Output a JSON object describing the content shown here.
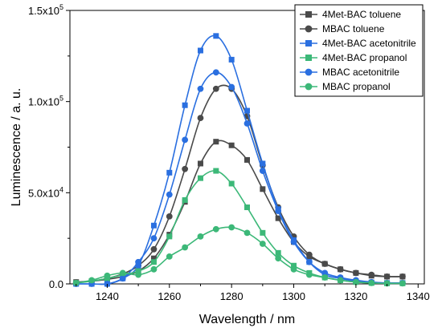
{
  "chart_data": {
    "type": "line",
    "xlabel": "Wavelength / nm",
    "ylabel": "Luminescence / a. u.",
    "xlim": [
      1228,
      1342
    ],
    "ylim": [
      0,
      150000
    ],
    "xticks": [
      1240,
      1260,
      1280,
      1300,
      1320,
      1340
    ],
    "yticks": [
      {
        "value": 0,
        "mantissa": "0.0",
        "exp": ""
      },
      {
        "value": 50000,
        "mantissa": "5.0x10",
        "exp": "4"
      },
      {
        "value": 100000,
        "mantissa": "1.0x10",
        "exp": "5"
      },
      {
        "value": 150000,
        "mantissa": "1.5x10",
        "exp": "5"
      }
    ],
    "legend_position": "top-right",
    "grid": false,
    "series": [
      {
        "name": "4Met-BAC toluene",
        "color": "#4a4a4a",
        "marker": "square",
        "x": [
          1230,
          1235,
          1240,
          1245,
          1250,
          1255,
          1260,
          1265,
          1270,
          1275,
          1280,
          1285,
          1290,
          1295,
          1300,
          1305,
          1310,
          1315,
          1320,
          1325,
          1330,
          1335
        ],
        "y": [
          1000,
          1500,
          2500,
          4000,
          7000,
          14000,
          27000,
          45000,
          66000,
          78000,
          76000,
          68000,
          52000,
          36000,
          23000,
          15000,
          11000,
          8000,
          6000,
          4500,
          4000,
          4000
        ]
      },
      {
        "name": "MBAC toluene",
        "color": "#4a4a4a",
        "marker": "circle",
        "x": [
          1230,
          1235,
          1240,
          1245,
          1250,
          1255,
          1260,
          1265,
          1270,
          1275,
          1280,
          1285,
          1290,
          1295,
          1300,
          1305,
          1310,
          1315,
          1320,
          1325,
          1330,
          1335
        ],
        "y": [
          800,
          1500,
          3000,
          5500,
          10000,
          19000,
          37000,
          63000,
          91000,
          107000,
          107000,
          92000,
          65000,
          42000,
          26000,
          16000,
          11000,
          8000,
          6000,
          5000,
          4000,
          4000
        ]
      },
      {
        "name": "4Met-BAC acetonitrile",
        "color": "#2a6fe0",
        "marker": "square",
        "x": [
          1230,
          1235,
          1240,
          1245,
          1250,
          1255,
          1260,
          1265,
          1270,
          1275,
          1280,
          1285,
          1290,
          1295,
          1300,
          1305,
          1310,
          1315,
          1320,
          1325,
          1330,
          1335
        ],
        "y": [
          0,
          0,
          0,
          3000,
          10000,
          32000,
          61000,
          98000,
          128000,
          136000,
          123000,
          95000,
          66000,
          41000,
          24000,
          12000,
          5000,
          3000,
          1500,
          800,
          500,
          500
        ]
      },
      {
        "name": "4Met-BAC propanol",
        "color": "#3cb878",
        "marker": "square",
        "x": [
          1230,
          1235,
          1240,
          1245,
          1250,
          1255,
          1260,
          1265,
          1270,
          1275,
          1280,
          1285,
          1290,
          1295,
          1300,
          1305,
          1310,
          1315,
          1320,
          1325,
          1330,
          1335
        ],
        "y": [
          500,
          1500,
          3000,
          5000,
          7000,
          12000,
          26000,
          46000,
          58000,
          62000,
          55000,
          42000,
          28000,
          17000,
          10000,
          6000,
          3500,
          2000,
          1000,
          500,
          300,
          300
        ]
      },
      {
        "name": "MBAC acetonitrile",
        "color": "#2a6fe0",
        "marker": "circle",
        "x": [
          1230,
          1235,
          1240,
          1245,
          1250,
          1255,
          1260,
          1265,
          1270,
          1275,
          1280,
          1285,
          1290,
          1295,
          1300,
          1305,
          1310,
          1315,
          1320,
          1325,
          1330,
          1335
        ],
        "y": [
          0,
          0,
          0,
          3000,
          12000,
          25000,
          49000,
          79000,
          107000,
          116000,
          108000,
          88000,
          62000,
          40000,
          23000,
          12000,
          6000,
          3500,
          2000,
          1000,
          500,
          500
        ]
      },
      {
        "name": "MBAC propanol",
        "color": "#3cb878",
        "marker": "circle",
        "x": [
          1230,
          1235,
          1240,
          1245,
          1250,
          1255,
          1260,
          1265,
          1270,
          1275,
          1280,
          1285,
          1290,
          1295,
          1300,
          1305,
          1310,
          1315,
          1320,
          1325,
          1330,
          1335
        ],
        "y": [
          500,
          2000,
          4500,
          6000,
          5000,
          8000,
          15000,
          20000,
          26000,
          30000,
          31000,
          28000,
          22000,
          14000,
          8000,
          5000,
          3500,
          2000,
          1000,
          500,
          300,
          300
        ]
      }
    ]
  }
}
